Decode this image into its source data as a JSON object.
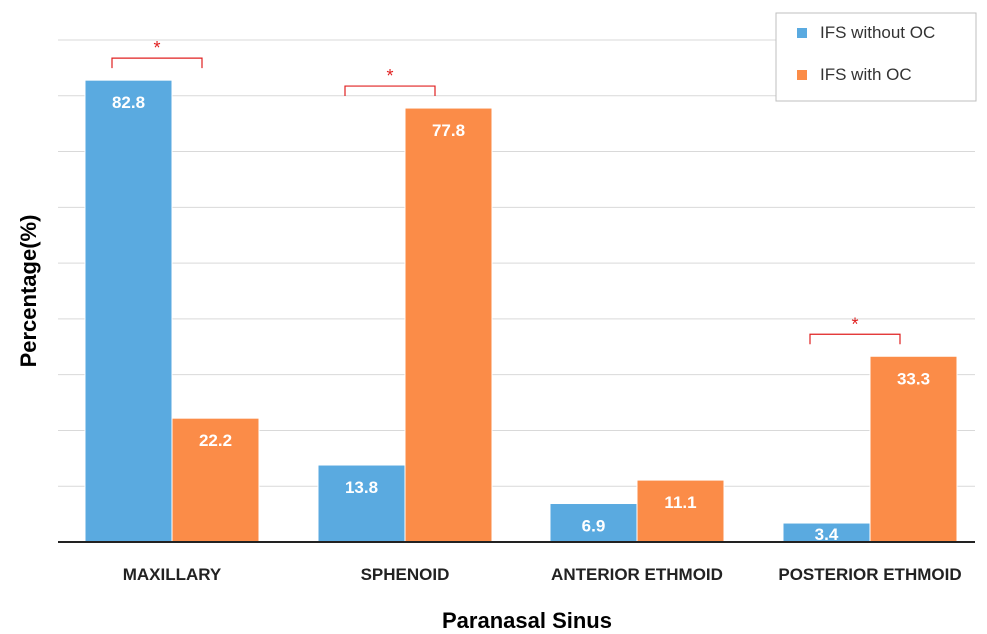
{
  "chart_data": {
    "type": "bar",
    "title": "",
    "xlabel": "Paranasal Sinus",
    "ylabel": "Percentage(%)",
    "ylim": [
      0,
      90
    ],
    "grid": true,
    "legend_position": "top-right",
    "categories": [
      "MAXILLARY",
      "SPHENOID",
      "ANTERIOR ETHMOID",
      "POSTERIOR ETHMOID"
    ],
    "series": [
      {
        "name": "IFS without OC",
        "color": "#5aaae0",
        "values": [
          82.8,
          13.8,
          6.9,
          3.4
        ]
      },
      {
        "name": "IFS with OC",
        "color": "#fb8c48",
        "values": [
          22.2,
          77.8,
          11.1,
          33.3
        ]
      }
    ],
    "annotations": [
      {
        "category": "MAXILLARY",
        "text": "*"
      },
      {
        "category": "SPHENOID",
        "text": "*"
      },
      {
        "category": "POSTERIOR ETHMOID",
        "text": "*"
      }
    ],
    "annotation_color": "#e02020"
  }
}
